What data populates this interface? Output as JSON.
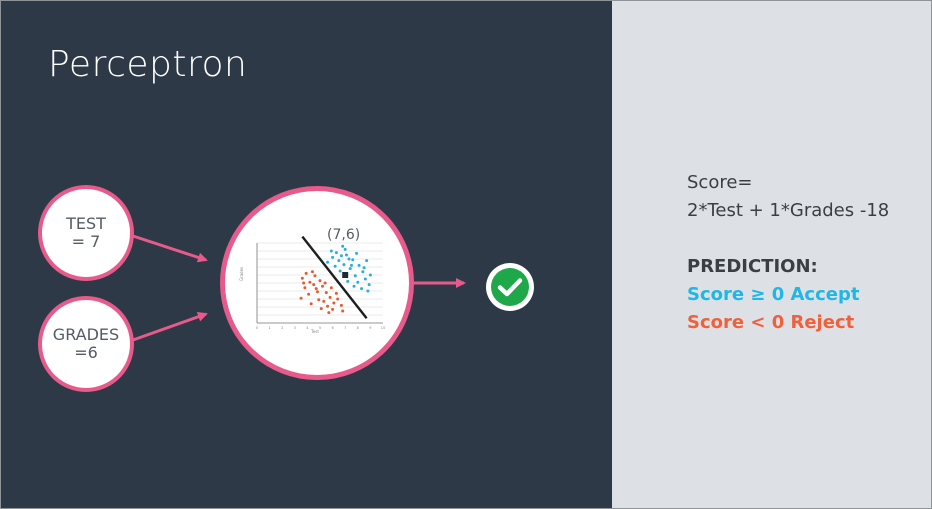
{
  "slide": {
    "title": "Perceptron",
    "bg_color": "#2e3947",
    "accent_color": "#e75a8a"
  },
  "inputs": {
    "test": {
      "line1": "TEST",
      "line2": "= 7"
    },
    "grades": {
      "line1": "GRADES",
      "line2": "=6"
    }
  },
  "chart_data": {
    "type": "scatter",
    "annotation": "(7,6)",
    "xlabel": "Test",
    "ylabel": "Grades",
    "xlim": [
      0,
      10
    ],
    "ylim": [
      0,
      10
    ],
    "x_ticks": [
      "0",
      "1",
      "2",
      "3",
      "4",
      "5",
      "6",
      "7",
      "8",
      "9",
      "10"
    ],
    "grid": true,
    "boundary": {
      "x1": 3.6,
      "y1": 10.8,
      "x2": 8.7,
      "y2": 0.6
    },
    "highlight_point": {
      "x": 7,
      "y": 6
    },
    "series": [
      {
        "color": "#e85a2e",
        "points": [
          [
            3.6,
            5.6
          ],
          [
            3.9,
            6.2
          ],
          [
            4.2,
            5.1
          ],
          [
            3.8,
            4.4
          ],
          [
            4.5,
            4.8
          ],
          [
            4.1,
            3.6
          ],
          [
            4.8,
            3.9
          ],
          [
            5.2,
            4.6
          ],
          [
            4.6,
            5.9
          ],
          [
            5.0,
            5.3
          ],
          [
            5.5,
            3.8
          ],
          [
            5.8,
            3.2
          ],
          [
            5.3,
            2.7
          ],
          [
            4.9,
            2.9
          ],
          [
            6.1,
            2.5
          ],
          [
            6.4,
            3.0
          ],
          [
            5.6,
            2.1
          ],
          [
            6.0,
            1.7
          ],
          [
            6.7,
            2.2
          ],
          [
            3.5,
            3.1
          ],
          [
            4.3,
            2.4
          ],
          [
            5.1,
            1.8
          ],
          [
            4.7,
            4.3
          ],
          [
            3.7,
            5.0
          ],
          [
            5.9,
            4.4
          ],
          [
            6.3,
            3.7
          ],
          [
            4.4,
            6.4
          ],
          [
            5.4,
            5.0
          ],
          [
            6.8,
            1.5
          ],
          [
            5.7,
            1.3
          ]
        ]
      },
      {
        "color": "#27aee0",
        "points": [
          [
            5.6,
            7.6
          ],
          [
            6.0,
            8.2
          ],
          [
            6.5,
            7.8
          ],
          [
            7.1,
            8.5
          ],
          [
            7.6,
            7.9
          ],
          [
            8.1,
            7.2
          ],
          [
            7.4,
            6.8
          ],
          [
            6.9,
            7.3
          ],
          [
            8.4,
            6.4
          ],
          [
            7.8,
            5.9
          ],
          [
            8.6,
            5.5
          ],
          [
            7.2,
            5.2
          ],
          [
            6.6,
            6.5
          ],
          [
            8.9,
            4.8
          ],
          [
            8.3,
            4.3
          ],
          [
            7.7,
            4.6
          ],
          [
            6.3,
            8.8
          ],
          [
            7.0,
            9.2
          ],
          [
            7.9,
            8.7
          ],
          [
            8.7,
            7.8
          ],
          [
            5.9,
            9.0
          ],
          [
            6.8,
            9.6
          ],
          [
            8.5,
            6.9
          ],
          [
            9.0,
            6.0
          ],
          [
            7.5,
            7.2
          ],
          [
            6.2,
            7.1
          ],
          [
            8.0,
            5.1
          ],
          [
            7.3,
            8.0
          ],
          [
            6.7,
            8.4
          ],
          [
            8.8,
            4.0
          ]
        ]
      }
    ]
  },
  "output": {
    "check_icon": "check-circle-icon",
    "color": "#1fa84a"
  },
  "formula": {
    "line1": "Score=",
    "line2": "2*Test + 1*Grades -18"
  },
  "prediction": {
    "heading": "PREDICTION:",
    "accept": "Score ≥ 0 Accept",
    "reject": "Score < 0 Reject",
    "accept_color": "#1fb7e6",
    "reject_color": "#f0603a"
  }
}
